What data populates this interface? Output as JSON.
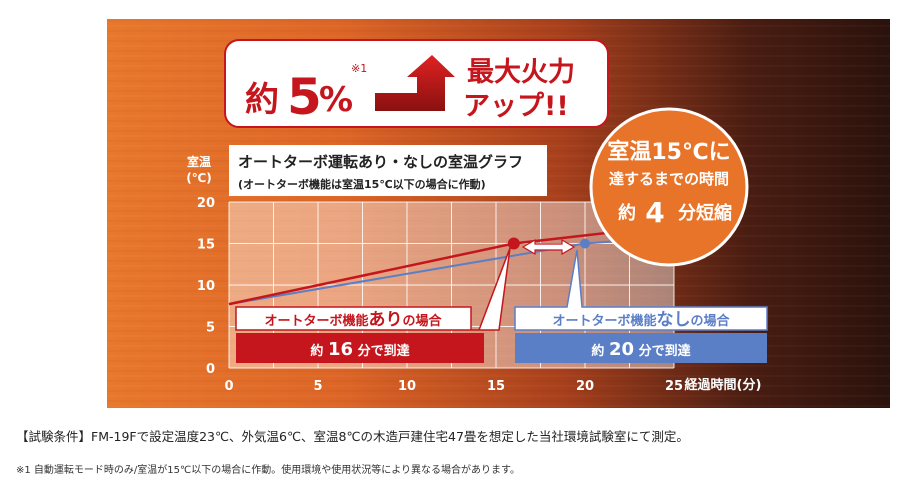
{
  "banner": {
    "prefix": "約",
    "value": "5",
    "unit": "%",
    "note_mark": "※1",
    "line1": "最大火力",
    "line2": "アップ!!"
  },
  "callout": {
    "line1": "室温15℃に",
    "line2": "達するまでの時間",
    "prefix": "約",
    "number": "4",
    "suffix": "分短縮"
  },
  "with_turbo": {
    "label_pre": "オートターボ機能",
    "label_emph": "あり",
    "label_post": "の場合",
    "time_pre": "約",
    "time_num": "16",
    "time_post": "分で到達"
  },
  "without_turbo": {
    "label_pre": "オートターボ機能",
    "label_emph": "なし",
    "label_post": "の場合",
    "time_pre": "約",
    "time_num": "20",
    "time_post": "分で到達"
  },
  "colors": {
    "with_turbo": "#c4161c",
    "without_turbo": "#5b7fc7",
    "accent_orange": "#e8742a"
  },
  "footer": {
    "conditions": "【試験条件】FM-19Fで設定温度23℃、外気温6℃、室温8℃の木造戸建住宅47畳を想定した当社環境試験室にて測定。",
    "note": "※1 自動運転モード時のみ/室温が15℃以下の場合に作動。使用環境や使用状況等により異なる場合があります。"
  },
  "chart_data": {
    "type": "line",
    "title": "オートターボ運転あり・なしの室温グラフ",
    "subtitle": "(オートターボ機能は室温15℃以下の場合に作動)",
    "ylabel": "室温 (℃)",
    "ylabel_line1": "室温",
    "ylabel_line2": "(℃)",
    "xlabel": "経過時間(分)",
    "xlim": [
      0,
      25
    ],
    "ylim": [
      0,
      20
    ],
    "xticks": [
      0,
      5,
      10,
      15,
      20,
      25
    ],
    "yticks": [
      0,
      5,
      10,
      15,
      20
    ],
    "grid": true,
    "series": [
      {
        "key": "with_turbo",
        "color": "#c4161c",
        "x": [
          0,
          16,
          25
        ],
        "y": [
          7.7,
          15,
          17.2
        ],
        "marker": {
          "x": 16,
          "y": 15
        }
      },
      {
        "key": "without_turbo",
        "color": "#5b7fc7",
        "x": [
          0,
          20,
          25
        ],
        "y": [
          7.7,
          15,
          15.8
        ],
        "marker": {
          "x": 20,
          "y": 15
        }
      }
    ]
  }
}
